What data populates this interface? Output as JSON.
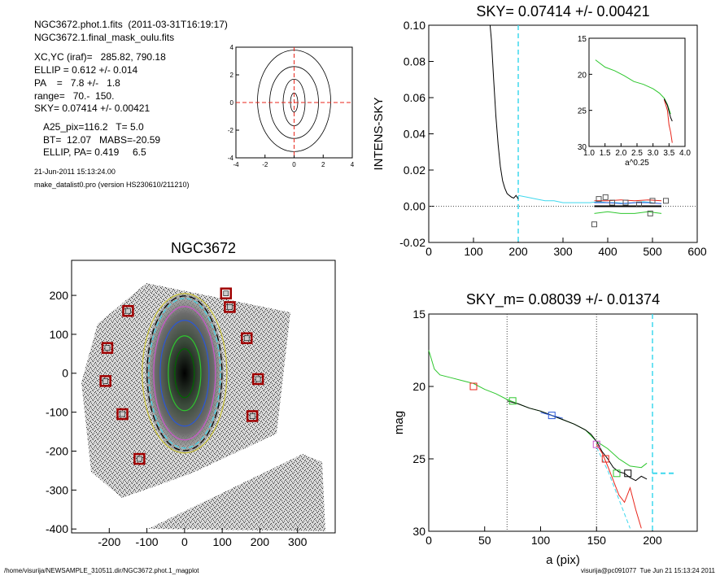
{
  "info": {
    "line1": "NGC3672.phot.1.fits  (2011-03-31T16:19:17)",
    "line2": "NGC3672.1.final_mask_oulu.fits",
    "xcyc": "XC,YC (iraf)=   285.82, 790.18",
    "ellip": "ELLIP = 0.612 +/- 0.014",
    "pa": "PA    =   7.8 +/-   1.8",
    "range": "range=   70.-  150.",
    "sky": "SKY= 0.07414 +/- 0.00421",
    "a25": "A25_pix=116.2   T= 5.0",
    "bt": "BT=  12.07   MABS=-20.59",
    "ellippa": "ELLIP, PA= 0.419     6.5",
    "date": "21-Jun-2011 15:13:24.00",
    "prog": "make_datalist0.pro (version HS230610/211210)"
  },
  "footer": {
    "left": "/home/visurija/NEWSAMPLE_310511.dir/NGC3672.phot.1_magplot",
    "right": "visurija@pc091077  Tue Jun 21 15:13:24 2011"
  },
  "colors": {
    "red": "#e8261b",
    "green": "#2ec72e",
    "blue": "#2a57d8",
    "cyan": "#3fd8ee",
    "black": "#000000",
    "magenta": "#cc55cc",
    "yellow": "#c9c236",
    "darkred": "#a00000"
  },
  "chart_data": [
    {
      "type": "contour",
      "id": "contour_thumb",
      "xlim": [
        -4,
        4
      ],
      "ylim": [
        -4,
        4
      ],
      "xticks": [
        "-4",
        "-2",
        "0",
        "2",
        "4"
      ],
      "yticks": [
        "-4",
        "-2",
        "0",
        "2",
        "4"
      ]
    },
    {
      "type": "line",
      "id": "sky_profile",
      "title": "SKY= 0.07414 +/- 0.00421",
      "ylabel": "INTENS-SKY",
      "xlim": [
        0,
        600
      ],
      "ylim": [
        -0.02,
        0.1
      ],
      "xticks": [
        "0",
        "100",
        "200",
        "300",
        "400",
        "500",
        "600"
      ],
      "yticks": [
        "-0.02",
        "0.00",
        "0.02",
        "0.04",
        "0.06",
        "0.08",
        "0.10"
      ],
      "series": [
        {
          "color": "black",
          "x": [
            137,
            140,
            145,
            150,
            155,
            160,
            165,
            170,
            175,
            180,
            185,
            190,
            195,
            200
          ],
          "y": [
            0.104,
            0.092,
            0.07,
            0.05,
            0.034,
            0.022,
            0.014,
            0.01,
            0.007,
            0.006,
            0.005,
            0.0045,
            0.006,
            0.004
          ]
        },
        {
          "color": "cyan",
          "x": [
            200,
            220,
            240,
            260,
            280,
            300,
            320,
            340,
            360,
            380,
            400,
            420,
            440,
            460,
            480,
            500
          ],
          "y": [
            0.006,
            0.005,
            0.004,
            0.003,
            0.003,
            0.002,
            0.002,
            0.002,
            0.002,
            0.0025,
            0.002,
            0.002,
            0.0015,
            0.002,
            0.0025,
            0.002
          ]
        },
        {
          "color": "red",
          "x": [
            370,
            400,
            430,
            460,
            490,
            520
          ],
          "y": [
            0.003,
            0.003,
            0.0035,
            0.003,
            0.0035,
            0.003
          ]
        },
        {
          "color": "green",
          "x": [
            370,
            400,
            430,
            460,
            490,
            520
          ],
          "y": [
            -0.004,
            -0.003,
            -0.004,
            -0.004,
            -0.003,
            -0.004
          ]
        },
        {
          "color": "blue",
          "x": [
            370,
            400,
            430,
            460,
            490,
            520
          ],
          "y": [
            0.002,
            0.002,
            0.0015,
            0.002,
            0.002,
            0.0015
          ]
        },
        {
          "color": "black",
          "x": [
            370,
            520
          ],
          "y": [
            0.0,
            0.0
          ]
        }
      ],
      "sq_markers": [
        {
          "x": 370,
          "y": -0.01
        },
        {
          "x": 380,
          "y": 0.004
        },
        {
          "x": 395,
          "y": 0.005
        },
        {
          "x": 410,
          "y": 0.002
        },
        {
          "x": 440,
          "y": 0.002
        },
        {
          "x": 470,
          "y": 0.001
        },
        {
          "x": 495,
          "y": -0.004
        },
        {
          "x": 500,
          "y": 0.003
        },
        {
          "x": 530,
          "y": 0.003
        }
      ],
      "vline": 200,
      "hline": 0,
      "inset": {
        "xlabel": "a^0.25",
        "xlim": [
          1.0,
          4.0
        ],
        "ylim": [
          15,
          30
        ],
        "xticks": [
          "1.0",
          "1.5",
          "2.0",
          "2.5",
          "3.0",
          "3.5",
          "4.0"
        ],
        "yticks": [
          "15",
          "20",
          "25",
          "30"
        ],
        "green": {
          "x": [
            1.2,
            1.5,
            1.8,
            2.1,
            2.4,
            2.7,
            3.0,
            3.2,
            3.35,
            3.45,
            3.55
          ],
          "y": [
            18.0,
            19.0,
            19.5,
            20.2,
            21.0,
            21.4,
            22.0,
            22.6,
            23.3,
            24.2,
            25.5
          ]
        },
        "red": {
          "x": [
            3.35,
            3.45,
            3.5,
            3.55,
            3.6
          ],
          "y": [
            23.5,
            25.0,
            27.0,
            28.0,
            29.5
          ]
        },
        "black": {
          "x": [
            3.35,
            3.45,
            3.55,
            3.6
          ],
          "y": [
            23.4,
            24.3,
            26.0,
            26.5
          ]
        }
      }
    },
    {
      "type": "image",
      "id": "galaxy_image",
      "title": "NGC3672",
      "xlim": [
        -300,
        400
      ],
      "ylim": [
        -410,
        290
      ],
      "xticks": [
        "-200",
        "-100",
        "0",
        "100",
        "200",
        "300"
      ],
      "yticks": [
        "-400",
        "-300",
        "-200",
        "-100",
        "0",
        "100",
        "200"
      ],
      "sky_boxes": [
        {
          "x": -150,
          "y": 160
        },
        {
          "x": -205,
          "y": 65
        },
        {
          "x": -210,
          "y": -20
        },
        {
          "x": -165,
          "y": -105
        },
        {
          "x": -120,
          "y": -220
        },
        {
          "x": 110,
          "y": 205
        },
        {
          "x": 120,
          "y": 170
        },
        {
          "x": 165,
          "y": 90
        },
        {
          "x": 195,
          "y": -15
        },
        {
          "x": 180,
          "y": -110
        }
      ]
    },
    {
      "type": "line",
      "id": "mag_profile",
      "title": "SKY_m=  0.08039 +/- 0.01374",
      "xlabel": "a (pix)",
      "ylabel": "mag",
      "xlim": [
        0,
        240
      ],
      "ylim": [
        30,
        15
      ],
      "xticks": [
        "0",
        "50",
        "100",
        "150",
        "200"
      ],
      "yticks": [
        "15",
        "20",
        "25",
        "30"
      ],
      "vlines_dotted": [
        70,
        150
      ],
      "vline_cyan": 200,
      "series": [
        {
          "color": "green",
          "x": [
            0,
            5,
            10,
            20,
            30,
            40,
            50,
            60,
            70,
            80,
            90,
            100,
            110,
            120,
            130,
            140,
            150,
            160,
            170,
            180,
            190,
            195
          ],
          "y": [
            17.5,
            18.8,
            19.2,
            19.4,
            19.6,
            19.8,
            20.2,
            20.5,
            20.9,
            21.2,
            21.5,
            21.7,
            22.0,
            22.3,
            22.6,
            23.0,
            23.8,
            24.3,
            25.0,
            25.5,
            25.6,
            25.3
          ]
        },
        {
          "color": "black",
          "x": [
            70,
            80,
            90,
            100,
            110,
            120,
            130,
            140,
            145,
            150,
            155,
            160,
            165,
            170,
            175,
            180,
            185,
            190,
            195
          ],
          "y": [
            21.0,
            21.2,
            21.5,
            21.7,
            22.0,
            22.3,
            22.6,
            23.0,
            23.3,
            23.8,
            24.5,
            25.0,
            25.6,
            25.9,
            26.0,
            26.3,
            26.5,
            26.2,
            26.4
          ]
        },
        {
          "color": "red",
          "x": [
            150,
            155,
            160,
            165,
            170,
            175,
            180,
            185,
            190
          ],
          "y": [
            24.0,
            24.6,
            25.5,
            26.5,
            27.5,
            28.0,
            27.0,
            28.5,
            29.8
          ]
        },
        {
          "color": "blue",
          "x": [
            100,
            110,
            120
          ],
          "y": [
            21.8,
            22.0,
            22.2
          ]
        },
        {
          "color": "cyan",
          "x": [
            150,
            155,
            160,
            165,
            170,
            175,
            180
          ],
          "y": [
            24.2,
            25.0,
            25.8,
            26.8,
            27.8,
            28.8,
            29.8
          ]
        },
        {
          "color": "cyan_dash",
          "x": [
            200,
            220
          ],
          "y": [
            26.0,
            26.0
          ]
        }
      ],
      "sq_markers": [
        {
          "x": 40,
          "y": 20.0,
          "color": "red"
        },
        {
          "x": 75,
          "y": 21.0,
          "color": "green"
        },
        {
          "x": 110,
          "y": 22.0,
          "color": "blue"
        },
        {
          "x": 150,
          "y": 24.0,
          "color": "magenta"
        },
        {
          "x": 158,
          "y": 25.0,
          "color": "red"
        },
        {
          "x": 168,
          "y": 26.0,
          "color": "green"
        },
        {
          "x": 178,
          "y": 26.0,
          "color": "black"
        }
      ]
    }
  ]
}
